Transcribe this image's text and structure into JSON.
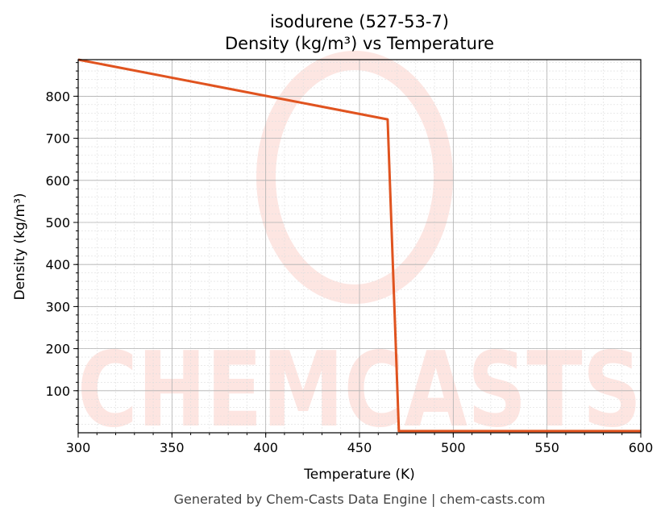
{
  "chart_data": {
    "type": "line",
    "title": "isodurene (527-53-7)",
    "subtitle": "Density (kg/m³) vs Temperature",
    "xlabel": "Temperature (K)",
    "ylabel": "Density (kg/m³)",
    "xlim": [
      300,
      600
    ],
    "ylim": [
      0,
      887
    ],
    "xticks": [
      300,
      350,
      400,
      450,
      500,
      550,
      600
    ],
    "yticks": [
      100,
      200,
      300,
      400,
      500,
      600,
      700,
      800
    ],
    "grid": true,
    "series": [
      {
        "x": [
          300,
          465,
          471,
          600
        ],
        "y": [
          887,
          745,
          4,
          4
        ],
        "color": "#e0531f"
      }
    ],
    "watermark": "CHEMCASTS"
  },
  "footer": "Generated by Chem-Casts Data Engine | chem-casts.com"
}
